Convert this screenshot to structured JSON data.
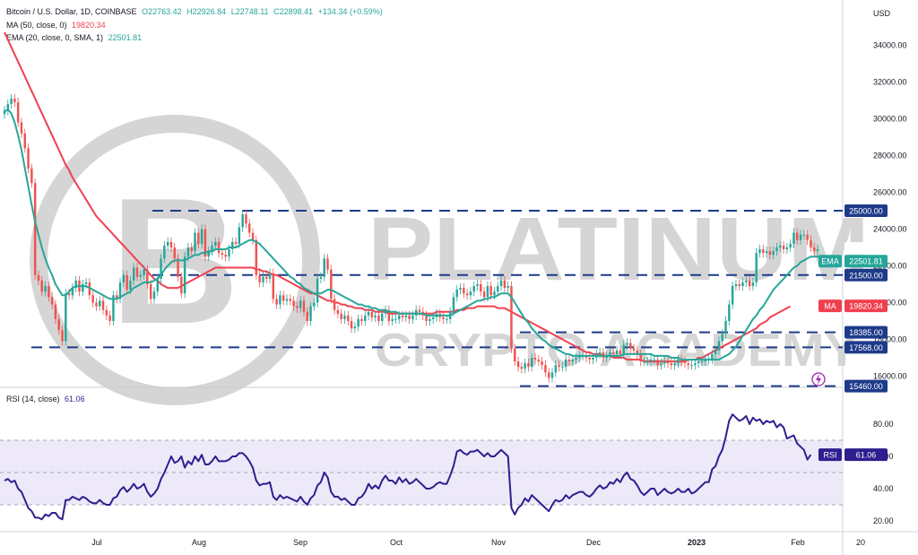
{
  "header": {
    "symbol": "Bitcoin / U.S. Dollar, 1D, COINBASE",
    "open": "O22763.42",
    "high": "H22926.84",
    "low": "L22748.11",
    "close": "C22898.41",
    "change": "+134.34 (+0.59%)",
    "ma_label": "MA (50, close, 0)",
    "ma_value": "19820.34",
    "ema_label": "EMA (20, close, 0, SMA, 1)",
    "ema_value": "22501.81",
    "rsi_label": "RSI (14, close)",
    "rsi_value": "61.06"
  },
  "watermark": {
    "brand": "PLATINUM",
    "sub": "CRYPTO ACADEMY"
  },
  "colors": {
    "up": "#26a69a",
    "down": "#ef5350",
    "ema": "#26a69a",
    "ma": "#f04050",
    "rsi": "#2e1f8f",
    "support": "#1e3a8a",
    "rsi_band": "#ede9f8"
  },
  "chart_data": [
    {
      "type": "candlestick",
      "currency_label": "USD",
      "ylim": [
        15000,
        35000
      ],
      "y_ticks": [
        "34000.00",
        "32000.00",
        "30000.00",
        "28000.00",
        "26000.00",
        "24000.00",
        "22000.00",
        "20000.00",
        "18000.00",
        "16000.00"
      ],
      "x_labels": [
        "Jul",
        "Aug",
        "Sep",
        "Oct",
        "Nov",
        "Dec",
        "2023",
        "Feb",
        "20"
      ],
      "horizontal_levels": [
        {
          "value": 25000,
          "label": "25000.00"
        },
        {
          "value": 21500,
          "label": "21500.00"
        },
        {
          "value": 18385,
          "label": "18385.00"
        },
        {
          "value": 17568,
          "label": "17568.00"
        },
        {
          "value": 15460,
          "label": "15460.00"
        }
      ],
      "tags": [
        {
          "name": "price",
          "value": 22898.41,
          "label": "22898.41"
        },
        {
          "name": "EMA",
          "value": 22501.81,
          "label": "22501.81"
        },
        {
          "name": "MA",
          "value": 19820.34,
          "label": "19820.34"
        }
      ],
      "close_series": [
        30450,
        30800,
        31100,
        30900,
        29800,
        29200,
        28400,
        27300,
        26500,
        21500,
        21200,
        20600,
        20900,
        20300,
        19900,
        19100,
        18500,
        17900,
        20500,
        20400,
        20800,
        21200,
        20600,
        21000,
        21100,
        20400,
        20000,
        19800,
        20100,
        19600,
        19300,
        19000,
        20400,
        20200,
        21100,
        21500,
        20700,
        21200,
        21900,
        21400,
        21500,
        21800,
        21000,
        20200,
        20600,
        21300,
        22400,
        23100,
        23300,
        23000,
        22400,
        21400,
        20500,
        22500,
        23000,
        22800,
        23800,
        23200,
        24000,
        22500,
        22800,
        23100,
        23300,
        22700,
        22600,
        22500,
        22900,
        23300,
        23200,
        24100,
        24800,
        24300,
        23800,
        23400,
        21500,
        21100,
        21400,
        21300,
        21600,
        20200,
        19900,
        20400,
        20100,
        20200,
        20100,
        19800,
        19700,
        20100,
        19500,
        19000,
        19800,
        20000,
        21300,
        21400,
        22400,
        21800,
        20200,
        19600,
        19400,
        19100,
        19300,
        19000,
        18600,
        18700,
        19100,
        19000,
        19300,
        19500,
        19200,
        19300,
        19000,
        19400,
        19600,
        19000,
        19100,
        19100,
        19300,
        19200,
        19300,
        19100,
        19300,
        19600,
        19500,
        19300,
        19000,
        19100,
        19200,
        19400,
        19200,
        19100,
        19100,
        19500,
        20300,
        20700,
        20800,
        20500,
        20400,
        20600,
        20900,
        21000,
        20600,
        20300,
        20900,
        20400,
        20600,
        20900,
        21200,
        20800,
        20900,
        17500,
        16800,
        16500,
        16400,
        16700,
        16500,
        17000,
        16900,
        16800,
        16600,
        16200,
        15900,
        16200,
        16600,
        16500,
        16500,
        16900,
        16800,
        16900,
        17000,
        17100,
        17100,
        17000,
        16900,
        17000,
        17200,
        17300,
        17000,
        17100,
        17300,
        17200,
        17400,
        17200,
        17700,
        17800,
        17500,
        17400,
        17200,
        16800,
        16800,
        16800,
        16900,
        16900,
        16600,
        16700,
        16800,
        16700,
        16600,
        16700,
        16900,
        16800,
        16700,
        16600,
        16600,
        16700,
        16800,
        16800,
        16900,
        16900,
        17200,
        17400,
        17900,
        18300,
        19000,
        19900,
        20900,
        21000,
        20900,
        21100,
        21200,
        20900,
        21100,
        22700,
        22900,
        22700,
        22800,
        22600,
        22800,
        23000,
        23100,
        22900,
        23000,
        23200,
        23800,
        23400,
        23700,
        23700,
        23400,
        23000,
        22800,
        22900
      ],
      "ema20_series": [
        30400,
        30500,
        30300,
        29800,
        29100,
        28300,
        27300,
        26300,
        25300,
        24400,
        23700,
        23000,
        22400,
        21900,
        21500,
        21000,
        20700,
        20400,
        20400,
        20600,
        20800,
        20900,
        20900,
        20900,
        20900,
        20800,
        20700,
        20600,
        20500,
        20400,
        20300,
        20200,
        20200,
        20200,
        20300,
        20400,
        20500,
        20600,
        20800,
        20900,
        21000,
        21100,
        21100,
        21100,
        21200,
        21300,
        21500,
        21800,
        22000,
        22200,
        22300,
        22300,
        22300,
        22300,
        22400,
        22500,
        22600,
        22600,
        22700,
        22700,
        22800,
        22800,
        22900,
        22900,
        22900,
        22900,
        23000,
        23000,
        23000,
        23100,
        23200,
        23300,
        23400,
        23400,
        23300,
        23200,
        23000,
        22800,
        22600,
        22400,
        22200,
        22000,
        21800,
        21600,
        21400,
        21300,
        21100,
        21000,
        20800,
        20700,
        20600,
        20500,
        20500,
        20500,
        20600,
        20700,
        20700,
        20600,
        20500,
        20400,
        20300,
        20200,
        20100,
        20000,
        19900,
        19900,
        19800,
        19800,
        19700,
        19700,
        19600,
        19600,
        19600,
        19500,
        19500,
        19500,
        19400,
        19400,
        19400,
        19400,
        19400,
        19400,
        19400,
        19400,
        19300,
        19300,
        19300,
        19300,
        19300,
        19300,
        19300,
        19300,
        19400,
        19500,
        19600,
        19700,
        19800,
        19900,
        20000,
        20100,
        20100,
        20200,
        20200,
        20300,
        20300,
        20400,
        20500,
        20500,
        20500,
        20300,
        20000,
        19700,
        19400,
        19100,
        18900,
        18600,
        18400,
        18200,
        18000,
        17900,
        17700,
        17600,
        17500,
        17400,
        17300,
        17200,
        17200,
        17100,
        17100,
        17100,
        17100,
        17100,
        17100,
        17100,
        17100,
        17100,
        17100,
        17100,
        17100,
        17100,
        17100,
        17100,
        17200,
        17200,
        17200,
        17200,
        17200,
        17200,
        17200,
        17200,
        17200,
        17100,
        17100,
        17100,
        17100,
        17100,
        17000,
        17000,
        17000,
        16900,
        16900,
        16900,
        16900,
        16900,
        16900,
        16900,
        16900,
        16900,
        16900,
        16900,
        16900,
        17000,
        17100,
        17200,
        17400,
        17600,
        17900,
        18200,
        18500,
        18800,
        19100,
        19300,
        19600,
        19800,
        20100,
        20400,
        20700,
        20900,
        21100,
        21300,
        21500,
        21700,
        21900,
        22000,
        22200,
        22300,
        22400,
        22500,
        22500,
        22500,
        22500,
        22500,
        22500,
        22500
      ],
      "ma50_series": [
        34700,
        34300,
        33900,
        33500,
        33100,
        32700,
        32300,
        31900,
        31500,
        31100,
        30700,
        30300,
        29900,
        29500,
        29100,
        28700,
        28300,
        27900,
        27500,
        27200,
        26800,
        26500,
        26200,
        25900,
        25600,
        25300,
        25000,
        24700,
        24500,
        24300,
        24100,
        23900,
        23700,
        23500,
        23300,
        23100,
        22900,
        22700,
        22500,
        22300,
        22100,
        21900,
        21700,
        21500,
        21300,
        21200,
        21000,
        20900,
        20800,
        20800,
        20800,
        20800,
        20900,
        21000,
        21100,
        21200,
        21300,
        21400,
        21500,
        21600,
        21700,
        21800,
        21900,
        21900,
        21900,
        21900,
        21900,
        21900,
        21900,
        21900,
        21900,
        21900,
        21900,
        21900,
        21800,
        21800,
        21700,
        21700,
        21600,
        21500,
        21500,
        21400,
        21300,
        21200,
        21100,
        21000,
        20900,
        20800,
        20700,
        20600,
        20500,
        20500,
        20400,
        20300,
        20200,
        20100,
        20100,
        20000,
        20000,
        19900,
        19900,
        19800,
        19800,
        19700,
        19700,
        19700,
        19600,
        19600,
        19600,
        19500,
        19500,
        19500,
        19500,
        19400,
        19400,
        19400,
        19400,
        19400,
        19400,
        19400,
        19400,
        19400,
        19400,
        19400,
        19400,
        19400,
        19400,
        19500,
        19500,
        19500,
        19500,
        19500,
        19500,
        19600,
        19600,
        19600,
        19700,
        19700,
        19700,
        19800,
        19800,
        19800,
        19800,
        19800,
        19800,
        19700,
        19700,
        19700,
        19600,
        19500,
        19400,
        19300,
        19200,
        19100,
        19000,
        18900,
        18800,
        18700,
        18600,
        18500,
        18400,
        18300,
        18200,
        18100,
        18000,
        17900,
        17800,
        17700,
        17600,
        17500,
        17400,
        17300,
        17300,
        17200,
        17200,
        17200,
        17100,
        17100,
        17100,
        17000,
        17000,
        17000,
        17000,
        16900,
        16900,
        16900,
        16900,
        16900,
        16800,
        16800,
        16800,
        16800,
        16800,
        16800,
        16800,
        16800,
        16800,
        16800,
        16800,
        16800,
        16800,
        16900,
        16900,
        16900,
        17000,
        17000,
        17100,
        17200,
        17300,
        17400,
        17500,
        17600,
        17700,
        17800,
        17900,
        18000,
        18100,
        18200,
        18300,
        18400,
        18500,
        18600,
        18800,
        18900,
        19000,
        19200,
        19300,
        19400,
        19500,
        19600,
        19700,
        19800
      ]
    },
    {
      "type": "line",
      "title": "RSI (14, close)",
      "ylim": [
        15,
        100
      ],
      "y_ticks": [
        "80.00",
        "60.00",
        "40.00",
        "20.00"
      ],
      "band": [
        30,
        70
      ],
      "tag": {
        "name": "RSI",
        "value": 61.06,
        "label": "61.06"
      },
      "series": [
        {
          "values": [
            45,
            46,
            44,
            45,
            40,
            38,
            33,
            28,
            26,
            22,
            22,
            21,
            24,
            23,
            25,
            25,
            22,
            21,
            33,
            33,
            35,
            34,
            33,
            35,
            34,
            32,
            31,
            31,
            33,
            31,
            30,
            30,
            34,
            35,
            39,
            41,
            38,
            40,
            43,
            40,
            41,
            43,
            38,
            35,
            37,
            40,
            46,
            50,
            55,
            60,
            56,
            57,
            60,
            53,
            57,
            55,
            60,
            57,
            61,
            55,
            55,
            57,
            60,
            57,
            57,
            57,
            58,
            60,
            60,
            62,
            62,
            60,
            57,
            53,
            45,
            42,
            43,
            43,
            44,
            35,
            33,
            36,
            34,
            35,
            34,
            33,
            32,
            35,
            32,
            30,
            34,
            36,
            42,
            44,
            50,
            47,
            38,
            35,
            35,
            33,
            34,
            32,
            30,
            30,
            34,
            35,
            38,
            43,
            40,
            42,
            40,
            45,
            48,
            45,
            45,
            43,
            47,
            44,
            46,
            43,
            44,
            46,
            44,
            42,
            40,
            40,
            41,
            43,
            44,
            43,
            43,
            48,
            54,
            63,
            64,
            62,
            61,
            63,
            63,
            64,
            62,
            60,
            62,
            60,
            60,
            62,
            64,
            62,
            60,
            28,
            24,
            28,
            30,
            34,
            32,
            36,
            34,
            32,
            30,
            28,
            26,
            30,
            33,
            32,
            33,
            36,
            34,
            36,
            37,
            38,
            38,
            36,
            35,
            37,
            40,
            42,
            40,
            41,
            44,
            43,
            46,
            44,
            48,
            50,
            46,
            45,
            42,
            38,
            36,
            38,
            40,
            40,
            36,
            38,
            40,
            38,
            37,
            38,
            40,
            38,
            38,
            40,
            37,
            38,
            40,
            42,
            44,
            44,
            52,
            54,
            60,
            64,
            72,
            82,
            86,
            84,
            82,
            83,
            85,
            80,
            84,
            82,
            83,
            80,
            82,
            81,
            82,
            78,
            80,
            78,
            71,
            72,
            73,
            68,
            66,
            64,
            58,
            61
          ]
        }
      ]
    }
  ]
}
